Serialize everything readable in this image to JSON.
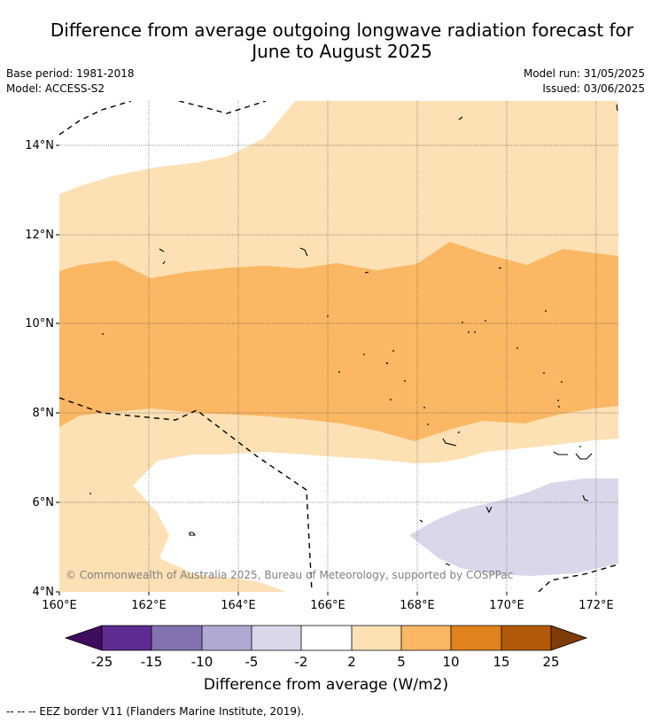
{
  "title": {
    "line1": "Difference from average outgoing longwave radiation forecast for",
    "line2": "June to August 2025"
  },
  "meta": {
    "base_period": "Base period: 1981-2018",
    "model": "Model: ACCESS-S2",
    "model_run": "Model run: 31/05/2025",
    "issued": "Issued: 03/06/2025"
  },
  "map": {
    "lon_ticks": [
      "160°E",
      "162°E",
      "164°E",
      "166°E",
      "168°E",
      "170°E",
      "172°E"
    ],
    "lat_ticks": [
      "14°N",
      "12°N",
      "10°N",
      "8°N",
      "6°N",
      "4°N"
    ],
    "copyright": "© Commonwealth of Australia 2025, Bureau of Meteorology, supported by COSPPac"
  },
  "colorbar": {
    "label": "Difference from average (W/m2)",
    "ticks": [
      "-25",
      "-15",
      "-10",
      "-5",
      "-2",
      "2",
      "5",
      "10",
      "15",
      "25"
    ],
    "colors": [
      "#3f0d5f",
      "#5e2c91",
      "#8473b0",
      "#b1a9d3",
      "#d8d8ea",
      "#ffffff",
      "#fde0b4",
      "#fbb763",
      "#e0821d",
      "#b35a0a",
      "#7f3b08"
    ]
  },
  "footer": "--  --  -- EEZ border V11 (Flanders Marine Institute, 2019)."
}
